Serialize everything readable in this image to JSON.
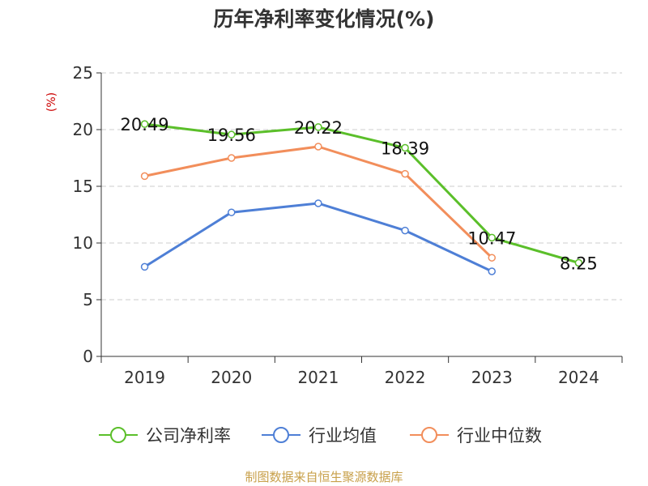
{
  "chart_data": {
    "type": "line",
    "title": "历年净利率变化情况(%)",
    "ylabel": "(%)",
    "xlabel": "",
    "categories": [
      "2019",
      "2020",
      "2021",
      "2022",
      "2023",
      "2024"
    ],
    "ylim": [
      0,
      25
    ],
    "yticks": [
      0,
      5,
      10,
      15,
      20,
      25
    ],
    "grid": true,
    "legend_position": "bottom",
    "series": [
      {
        "name": "公司净利率",
        "color": "#5bbf2a",
        "values": [
          20.49,
          19.56,
          20.22,
          18.39,
          10.47,
          8.25
        ],
        "data_labels": [
          "20.49",
          "19.56",
          "20.22",
          "18.39",
          "10.47",
          "8.25"
        ]
      },
      {
        "name": "行业均值",
        "color": "#4e7fd6",
        "values": [
          7.9,
          12.7,
          13.5,
          11.1,
          7.5,
          null
        ]
      },
      {
        "name": "行业中位数",
        "color": "#f28e5b",
        "values": [
          15.9,
          17.5,
          18.5,
          16.1,
          8.7,
          null
        ]
      }
    ]
  },
  "footer": {
    "source": "制图数据来自恒生聚源数据库"
  }
}
